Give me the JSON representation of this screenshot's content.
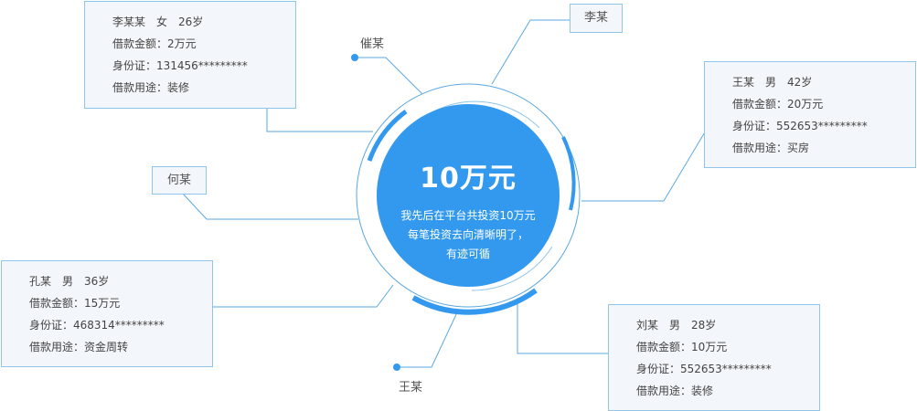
{
  "center": {
    "amount": "10万元",
    "desc_lines": [
      "我先后在平台共投资10万元",
      "每笔投资去向清晰明了，",
      "有迹可循"
    ]
  },
  "labels": {
    "cui": "催某",
    "wang_bottom": "王某",
    "li_tag": "李某",
    "he_tag": "何某"
  },
  "cards": [
    {
      "name": "李某某",
      "gender": "女",
      "age": "26岁",
      "amount": "借款金额：2万元",
      "id": "身份证：131456*********",
      "purpose": "借款用途：装修"
    },
    {
      "name": "王某",
      "gender": "男",
      "age": "42岁",
      "amount": "借款金额：20万元",
      "id": "身份证：552653*********",
      "purpose": "借款用途：买房"
    },
    {
      "name": "孔某",
      "gender": "男",
      "age": "36岁",
      "amount": "借款金额：15万元",
      "id": "身份证：468314*********",
      "purpose": "借款用途：资金周转"
    },
    {
      "name": "刘某",
      "gender": "男",
      "age": "28岁",
      "amount": "借款金额：10万元",
      "id": "身份证：552653*********",
      "purpose": "借款用途：装修"
    }
  ],
  "colors": {
    "accent": "#3399ee",
    "line": "#5aa8e0",
    "card_border": "#8fc5ea",
    "card_bg": "#f3f6fa"
  }
}
